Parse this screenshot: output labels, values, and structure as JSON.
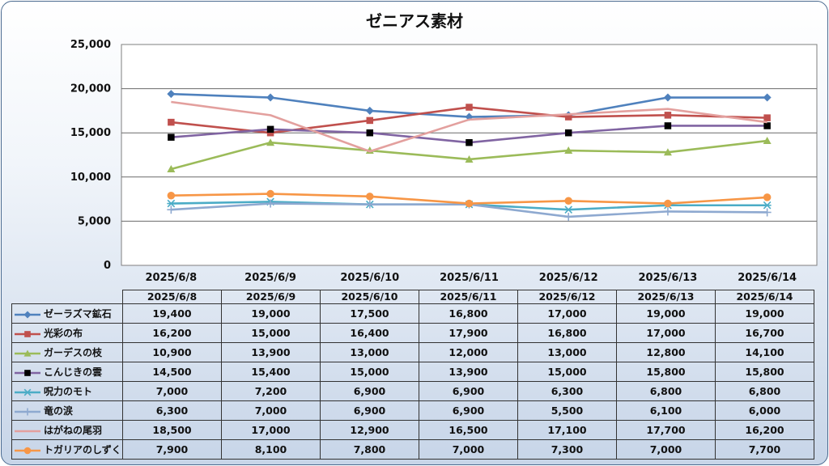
{
  "chart_data": {
    "type": "line",
    "title": "ゼニアス素材",
    "categories": [
      "2025/6/8",
      "2025/6/9",
      "2025/6/10",
      "2025/6/11",
      "2025/6/12",
      "2025/6/13",
      "2025/6/14"
    ],
    "ylim": [
      0,
      25000
    ],
    "yticks": [
      "0",
      "5,000",
      "10,000",
      "15,000",
      "20,000",
      "25,000"
    ],
    "grid": true,
    "legend": "data-table",
    "series": [
      {
        "name": "ゼーラズマ鉱石",
        "color": "#4f81bd",
        "marker": "diamond",
        "values": [
          19400,
          19000,
          17500,
          16800,
          17000,
          19000,
          19000
        ],
        "labels": [
          "19,400",
          "19,000",
          "17,500",
          "16,800",
          "17,000",
          "19,000",
          "19,000"
        ]
      },
      {
        "name": "光彩の布",
        "color": "#c0504d",
        "marker": "square",
        "values": [
          16200,
          15000,
          16400,
          17900,
          16800,
          17000,
          16700
        ],
        "labels": [
          "16,200",
          "15,000",
          "16,400",
          "17,900",
          "16,800",
          "17,000",
          "16,700"
        ]
      },
      {
        "name": "ガーデスの枝",
        "color": "#9bbb59",
        "marker": "triangle",
        "values": [
          10900,
          13900,
          13000,
          12000,
          13000,
          12800,
          14100
        ],
        "labels": [
          "10,900",
          "13,900",
          "13,000",
          "12,000",
          "13,000",
          "12,800",
          "14,100"
        ]
      },
      {
        "name": "こんじきの雲",
        "color": "#8064a2",
        "marker": "square-black",
        "values": [
          14500,
          15400,
          15000,
          13900,
          15000,
          15800,
          15800
        ],
        "labels": [
          "14,500",
          "15,400",
          "15,000",
          "13,900",
          "15,000",
          "15,800",
          "15,800"
        ]
      },
      {
        "name": "呪力のモト",
        "color": "#4bacc6",
        "marker": "star",
        "values": [
          7000,
          7200,
          6900,
          6900,
          6300,
          6800,
          6800
        ],
        "labels": [
          "7,000",
          "7,200",
          "6,900",
          "6,900",
          "6,300",
          "6,800",
          "6,800"
        ]
      },
      {
        "name": "竜の涙",
        "color": "#8ea9d0",
        "marker": "plus",
        "values": [
          6300,
          7000,
          6900,
          6900,
          5500,
          6100,
          6000
        ],
        "labels": [
          "6,300",
          "7,000",
          "6,900",
          "6,900",
          "5,500",
          "6,100",
          "6,000"
        ]
      },
      {
        "name": "はがねの尾羽",
        "color": "#e3a09e",
        "marker": "none",
        "values": [
          18500,
          17000,
          12900,
          16500,
          17100,
          17700,
          16200
        ],
        "labels": [
          "18,500",
          "17,000",
          "12,900",
          "16,500",
          "17,100",
          "17,700",
          "16,200"
        ]
      },
      {
        "name": "トガリアのしずく",
        "color": "#f79646",
        "marker": "circle",
        "values": [
          7900,
          8100,
          7800,
          7000,
          7300,
          7000,
          7700
        ],
        "labels": [
          "7,900",
          "8,100",
          "7,800",
          "7,000",
          "7,300",
          "7,000",
          "7,700"
        ]
      }
    ]
  }
}
